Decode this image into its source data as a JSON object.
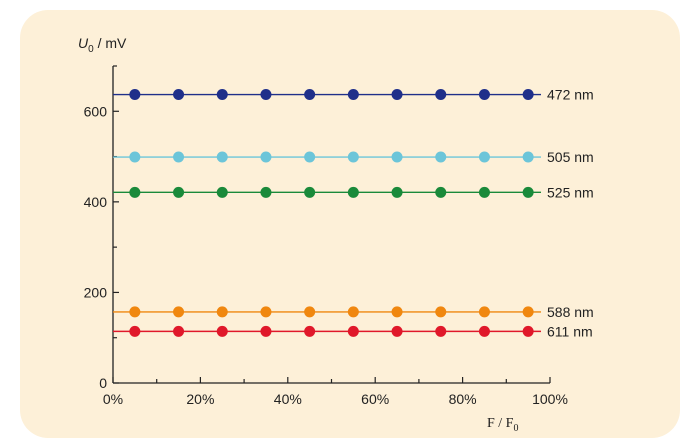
{
  "chart_data": {
    "type": "scatter",
    "title": "",
    "ylabel_var": "U",
    "ylabel_sub": "0",
    "ylabel_unit": " / mV",
    "xlabel_var": "F / F",
    "xlabel_sub": "0",
    "xlim": [
      0,
      100
    ],
    "ylim": [
      0,
      700
    ],
    "x_ticks": [
      0,
      20,
      40,
      60,
      80,
      100
    ],
    "x_tick_labels": [
      "0%",
      "20%",
      "40%",
      "60%",
      "80%",
      "100%"
    ],
    "y_ticks": [
      0,
      200,
      400,
      600
    ],
    "y_tick_labels": [
      "0",
      "200",
      "400",
      "600"
    ],
    "x": [
      5,
      15,
      25,
      35,
      45,
      55,
      65,
      75,
      85,
      95
    ],
    "series": [
      {
        "name": "472 nm",
        "value": 637,
        "color": "#1f2f8a"
      },
      {
        "name": "505 nm",
        "value": 499,
        "color": "#6cc5d9"
      },
      {
        "name": "525 nm",
        "value": 421,
        "color": "#1a8a3a"
      },
      {
        "name": "588 nm",
        "value": 157,
        "color": "#f0870f"
      },
      {
        "name": "611 nm",
        "value": 114,
        "color": "#e0182a"
      }
    ]
  }
}
